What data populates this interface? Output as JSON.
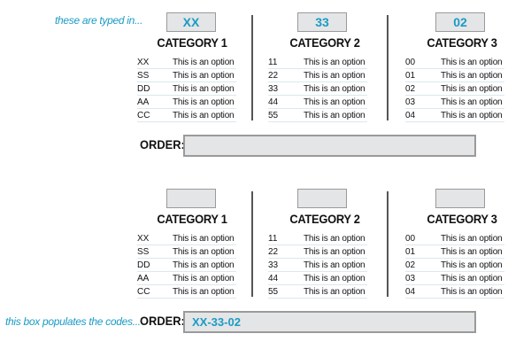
{
  "notes": {
    "top": "these are typed in...",
    "bottom": "this box populates the codes..."
  },
  "order_label": "ORDER:",
  "accent_color": "#1a9bc4",
  "categories": [
    {
      "title": "CATEGORY 1",
      "codes": [
        "XX",
        "SS",
        "DD",
        "AA",
        "CC"
      ]
    },
    {
      "title": "CATEGORY 2",
      "codes": [
        "11",
        "22",
        "33",
        "44",
        "55"
      ]
    },
    {
      "title": "CATEGORY 3",
      "codes": [
        "00",
        "01",
        "02",
        "03",
        "04"
      ]
    }
  ],
  "option_text": "This is an option",
  "top_form": {
    "inputs": [
      "XX",
      "33",
      "02"
    ],
    "order": ""
  },
  "bottom_form": {
    "inputs": [
      "",
      "",
      ""
    ],
    "order": "XX-33-02"
  }
}
